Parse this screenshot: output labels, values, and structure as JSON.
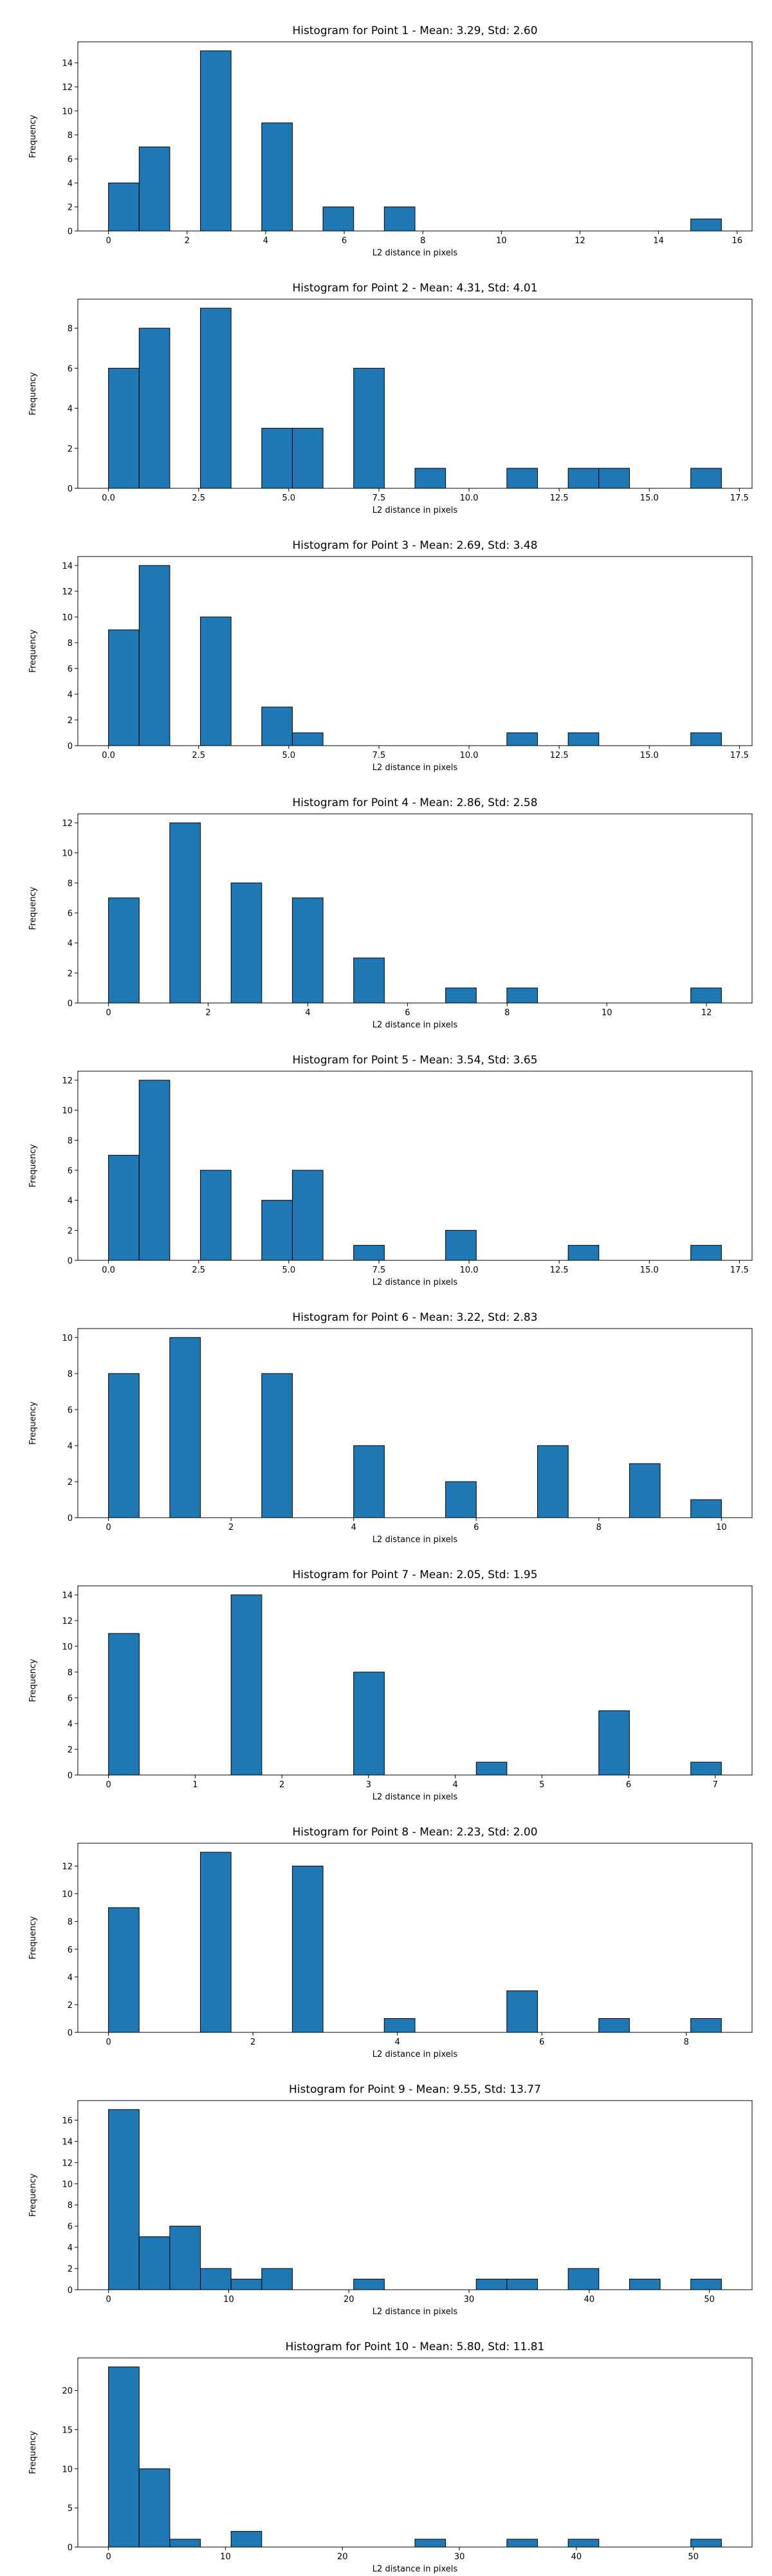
{
  "chart_data": [
    {
      "type": "histogram",
      "title": "Histogram for Point 1 - Mean: 3.29, Std: 2.60",
      "x_label": "L2 distance in pixels",
      "y_label": "Frequency",
      "color": "#1f77b4",
      "edgecolor": "#000000",
      "bins": [
        0,
        0.78,
        1.56,
        2.34,
        3.12,
        3.9,
        4.68,
        5.46,
        6.24,
        7.02,
        7.8,
        8.58,
        9.36,
        10.14,
        10.92,
        11.7,
        12.48,
        13.26,
        14.04,
        14.82,
        15.6
      ],
      "values": [
        4,
        7,
        0,
        15,
        0,
        9,
        0,
        2,
        0,
        2,
        0,
        0,
        0,
        0,
        0,
        0,
        0,
        0,
        0,
        1
      ],
      "xlim": [
        -0.78,
        16.38
      ],
      "xticks": [
        0,
        2,
        4,
        6,
        8,
        10,
        12,
        14,
        16
      ],
      "ylim": [
        0,
        15.75
      ],
      "yticks": [
        0,
        2,
        4,
        6,
        8,
        10,
        12,
        14
      ]
    },
    {
      "type": "histogram",
      "title": "Histogram for Point 2 - Mean: 4.31, Std: 4.01",
      "x_label": "L2 distance in pixels",
      "y_label": "Frequency",
      "color": "#1f77b4",
      "edgecolor": "#000000",
      "bins": [
        0,
        0.85,
        1.7,
        2.55,
        3.4,
        4.25,
        5.1,
        5.95,
        6.8,
        7.65,
        8.5,
        9.35,
        10.2,
        11.05,
        11.9,
        12.75,
        13.6,
        14.45,
        15.3,
        16.15,
        17
      ],
      "values": [
        6,
        8,
        0,
        9,
        0,
        3,
        3,
        0,
        6,
        0,
        1,
        0,
        0,
        1,
        0,
        1,
        1,
        0,
        0,
        1
      ],
      "xlim": [
        -0.85,
        17.85
      ],
      "xticks": [
        {
          "value": 0,
          "label": "0.0"
        },
        2.5,
        {
          "value": 5,
          "label": "5.0"
        },
        7.5,
        {
          "value": 10,
          "label": "10.0"
        },
        12.5,
        {
          "value": 15,
          "label": "15.0"
        },
        17.5
      ],
      "ylim": [
        0,
        9.45
      ],
      "yticks": [
        0,
        2,
        4,
        6,
        8
      ]
    },
    {
      "type": "histogram",
      "title": "Histogram for Point 3 - Mean: 2.69, Std: 3.48",
      "x_label": "L2 distance in pixels",
      "y_label": "Frequency",
      "color": "#1f77b4",
      "edgecolor": "#000000",
      "bins": [
        0,
        0.85,
        1.7,
        2.55,
        3.4,
        4.25,
        5.1,
        5.95,
        6.8,
        7.65,
        8.5,
        9.35,
        10.2,
        11.05,
        11.9,
        12.75,
        13.6,
        14.45,
        15.3,
        16.15,
        17
      ],
      "values": [
        9,
        14,
        0,
        10,
        0,
        3,
        1,
        0,
        0,
        0,
        0,
        0,
        0,
        1,
        0,
        1,
        0,
        0,
        0,
        1
      ],
      "xlim": [
        -0.85,
        17.85
      ],
      "xticks": [
        {
          "value": 0,
          "label": "0.0"
        },
        2.5,
        {
          "value": 5,
          "label": "5.0"
        },
        7.5,
        {
          "value": 10,
          "label": "10.0"
        },
        12.5,
        {
          "value": 15,
          "label": "15.0"
        },
        17.5
      ],
      "ylim": [
        0,
        14.7
      ],
      "yticks": [
        0,
        2,
        4,
        6,
        8,
        10,
        12,
        14
      ]
    },
    {
      "type": "histogram",
      "title": "Histogram for Point 4 - Mean: 2.86, Std: 2.58",
      "x_label": "L2 distance in pixels",
      "y_label": "Frequency",
      "color": "#1f77b4",
      "edgecolor": "#000000",
      "bins": [
        0,
        0.615,
        1.23,
        1.845,
        2.46,
        3.075,
        3.69,
        4.305,
        4.92,
        5.535,
        6.15,
        6.765,
        7.38,
        7.995,
        8.61,
        9.225,
        9.84,
        10.455,
        11.07,
        11.685,
        12.3
      ],
      "values": [
        7,
        0,
        12,
        0,
        8,
        0,
        7,
        0,
        3,
        0,
        0,
        1,
        0,
        1,
        0,
        0,
        0,
        0,
        0,
        1
      ],
      "xlim": [
        -0.615,
        12.915
      ],
      "xticks": [
        0,
        2,
        4,
        6,
        8,
        10,
        12
      ],
      "ylim": [
        0,
        12.6
      ],
      "yticks": [
        0,
        2,
        4,
        6,
        8,
        10,
        12
      ]
    },
    {
      "type": "histogram",
      "title": "Histogram for Point 5 - Mean: 3.54, Std: 3.65",
      "x_label": "L2 distance in pixels",
      "y_label": "Frequency",
      "color": "#1f77b4",
      "edgecolor": "#000000",
      "bins": [
        0,
        0.85,
        1.7,
        2.55,
        3.4,
        4.25,
        5.1,
        5.95,
        6.8,
        7.65,
        8.5,
        9.35,
        10.2,
        11.05,
        11.9,
        12.75,
        13.6,
        14.45,
        15.3,
        16.15,
        17
      ],
      "values": [
        7,
        12,
        0,
        6,
        0,
        4,
        6,
        0,
        1,
        0,
        0,
        2,
        0,
        0,
        0,
        1,
        0,
        0,
        0,
        1
      ],
      "xlim": [
        -0.85,
        17.85
      ],
      "xticks": [
        {
          "value": 0,
          "label": "0.0"
        },
        2.5,
        {
          "value": 5,
          "label": "5.0"
        },
        7.5,
        {
          "value": 10,
          "label": "10.0"
        },
        12.5,
        {
          "value": 15,
          "label": "15.0"
        },
        17.5
      ],
      "ylim": [
        0,
        12.6
      ],
      "yticks": [
        0,
        2,
        4,
        6,
        8,
        10,
        12
      ]
    },
    {
      "type": "histogram",
      "title": "Histogram for Point 6 - Mean: 3.22, Std: 2.83",
      "x_label": "L2 distance in pixels",
      "y_label": "Frequency",
      "color": "#1f77b4",
      "edgecolor": "#000000",
      "bins": [
        0,
        0.5,
        1,
        1.5,
        2,
        2.5,
        3,
        3.5,
        4,
        4.5,
        5,
        5.5,
        6,
        6.5,
        7,
        7.5,
        8,
        8.5,
        9,
        9.5,
        10
      ],
      "values": [
        8,
        0,
        10,
        0,
        0,
        8,
        0,
        0,
        4,
        0,
        0,
        2,
        0,
        0,
        4,
        0,
        0,
        3,
        0,
        1
      ],
      "xlim": [
        -0.5,
        10.5
      ],
      "xticks": [
        0,
        2,
        4,
        6,
        8,
        10
      ],
      "ylim": [
        0,
        10.5
      ],
      "yticks": [
        0,
        2,
        4,
        6,
        8,
        10
      ]
    },
    {
      "type": "histogram",
      "title": "Histogram for Point 7 - Mean: 2.05, Std: 1.95",
      "x_label": "L2 distance in pixels",
      "y_label": "Frequency",
      "color": "#1f77b4",
      "edgecolor": "#000000",
      "bins": [
        0,
        0.354,
        0.707,
        1.061,
        1.414,
        1.768,
        2.121,
        2.475,
        2.828,
        3.182,
        3.536,
        3.889,
        4.243,
        4.596,
        4.95,
        5.303,
        5.657,
        6.01,
        6.364,
        6.718,
        7.071
      ],
      "values": [
        11,
        0,
        0,
        0,
        14,
        0,
        0,
        0,
        8,
        0,
        0,
        0,
        1,
        0,
        0,
        0,
        5,
        0,
        0,
        1
      ],
      "xlim": [
        -0.354,
        7.425
      ],
      "xticks": [
        0,
        1,
        2,
        3,
        4,
        5,
        6,
        7
      ],
      "ylim": [
        0,
        14.7
      ],
      "yticks": [
        0,
        2,
        4,
        6,
        8,
        10,
        12,
        14
      ]
    },
    {
      "type": "histogram",
      "title": "Histogram for Point 8 - Mean: 2.23, Std: 2.00",
      "x_label": "L2 distance in pixels",
      "y_label": "Frequency",
      "color": "#1f77b4",
      "edgecolor": "#000000",
      "bins": [
        0,
        0.424,
        0.849,
        1.273,
        1.697,
        2.121,
        2.546,
        2.97,
        3.394,
        3.818,
        4.243,
        4.667,
        5.091,
        5.515,
        5.94,
        6.364,
        6.788,
        7.212,
        7.637,
        8.061,
        8.485
      ],
      "values": [
        9,
        0,
        0,
        13,
        0,
        0,
        12,
        0,
        0,
        1,
        0,
        0,
        0,
        3,
        0,
        0,
        1,
        0,
        0,
        1
      ],
      "xlim": [
        -0.424,
        8.91
      ],
      "xticks": [
        0,
        2,
        4,
        6,
        8
      ],
      "ylim": [
        0,
        13.65
      ],
      "yticks": [
        0,
        2,
        4,
        6,
        8,
        10,
        12
      ]
    },
    {
      "type": "histogram",
      "title": "Histogram for Point 9 - Mean: 9.55, Std: 13.77",
      "x_label": "L2 distance in pixels",
      "y_label": "Frequency",
      "color": "#1f77b4",
      "edgecolor": "#000000",
      "bins": [
        0,
        2.55,
        5.1,
        7.65,
        10.2,
        12.75,
        15.3,
        17.85,
        20.4,
        22.95,
        25.5,
        28.05,
        30.6,
        33.15,
        35.7,
        38.25,
        40.8,
        43.35,
        45.9,
        48.45,
        51
      ],
      "values": [
        17,
        5,
        6,
        2,
        1,
        2,
        0,
        0,
        1,
        0,
        0,
        0,
        1,
        1,
        0,
        2,
        0,
        1,
        0,
        1
      ],
      "xlim": [
        -2.55,
        53.55
      ],
      "xticks": [
        0,
        10,
        20,
        30,
        40,
        50
      ],
      "ylim": [
        0,
        17.85
      ],
      "yticks": [
        0,
        2,
        4,
        6,
        8,
        10,
        12,
        14,
        16
      ]
    },
    {
      "type": "histogram",
      "title": "Histogram for Point 10 - Mean: 5.80, Std: 11.81",
      "x_label": "L2 distance in pixels",
      "y_label": "Frequency",
      "color": "#1f77b4",
      "edgecolor": "#000000",
      "bins": [
        0,
        2.62,
        5.24,
        7.86,
        10.48,
        13.1,
        15.72,
        18.34,
        20.96,
        23.58,
        26.2,
        28.82,
        31.44,
        34.06,
        36.68,
        39.3,
        41.92,
        44.54,
        47.16,
        49.78,
        52.4
      ],
      "values": [
        23,
        10,
        1,
        0,
        2,
        0,
        0,
        0,
        0,
        0,
        1,
        0,
        0,
        1,
        0,
        1,
        0,
        0,
        0,
        1
      ],
      "xlim": [
        -2.62,
        55.02
      ],
      "xticks": [
        0,
        10,
        20,
        30,
        40,
        50
      ],
      "ylim": [
        0,
        24.15
      ],
      "yticks": [
        0,
        5,
        10,
        15,
        20
      ]
    }
  ]
}
